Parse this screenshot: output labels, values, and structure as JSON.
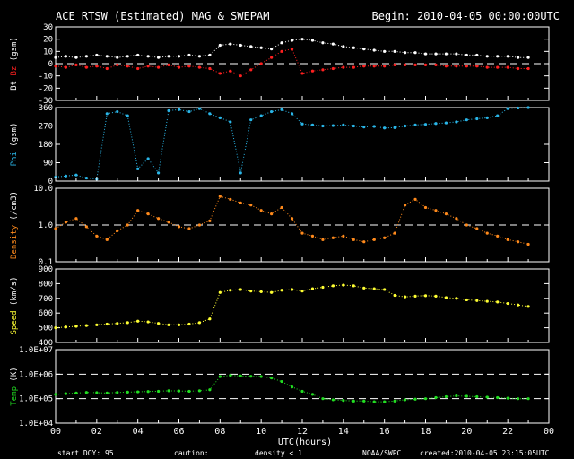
{
  "header": {
    "title": "ACE RTSW (Estimated) MAG & SWEPAM",
    "begin": "Begin: 2010-04-05 00:00:00UTC"
  },
  "footer": {
    "start_doy": "start DOY: 95",
    "caution": "caution:",
    "density_note": "density < 1",
    "source": "NOAA/SWPC",
    "created": "created:2010-04-05 23:15:05UTC"
  },
  "colors": {
    "bt": "#ffffff",
    "bz": "#ff2020",
    "phi": "#2ab6e8",
    "density": "#ff8a1c",
    "speed": "#ffff33",
    "temp": "#22dd22",
    "caution": "#ff8a1c"
  },
  "chart_data": [
    {
      "type": "scatter",
      "panel": "mag",
      "ylabel": [
        "Bt",
        "Bz",
        "(gsm)"
      ],
      "ylim": [
        -30,
        30
      ],
      "yticks": [
        "30",
        "20",
        "10",
        "0",
        "-10",
        "-20",
        "-30"
      ],
      "reference_line": 0,
      "series": [
        {
          "name": "Bt",
          "x": [
            0,
            0.5,
            1,
            1.5,
            2,
            2.5,
            3,
            3.5,
            4,
            4.5,
            5,
            5.5,
            6,
            6.5,
            7,
            7.5,
            8,
            8.5,
            9,
            9.5,
            10,
            10.5,
            11,
            11.5,
            12,
            12.5,
            13,
            13.5,
            14,
            14.5,
            15,
            15.5,
            16,
            16.5,
            17,
            17.5,
            18,
            18.5,
            19,
            19.5,
            20,
            20.5,
            21,
            21.5,
            22,
            22.5,
            23
          ],
          "y": [
            5,
            6,
            5,
            6,
            7,
            6,
            5,
            6,
            7,
            6,
            5,
            6,
            6,
            7,
            6,
            7,
            15,
            16,
            15,
            14,
            13,
            12,
            17,
            19,
            20,
            19,
            17,
            16,
            14,
            13,
            12,
            11,
            10,
            10,
            9,
            9,
            8,
            8,
            8,
            8,
            7,
            7,
            6,
            6,
            6,
            5,
            5
          ]
        },
        {
          "name": "Bz",
          "x": [
            0,
            0.5,
            1,
            1.5,
            2,
            2.5,
            3,
            3.5,
            4,
            4.5,
            5,
            5.5,
            6,
            6.5,
            7,
            7.5,
            8,
            8.5,
            9,
            9.5,
            10,
            10.5,
            11,
            11.5,
            12,
            12.5,
            13,
            13.5,
            14,
            14.5,
            15,
            15.5,
            16,
            16.5,
            17,
            17.5,
            18,
            18.5,
            19,
            19.5,
            20,
            20.5,
            21,
            21.5,
            22,
            22.5,
            23
          ],
          "y": [
            -2,
            -3,
            -1,
            -3,
            -2,
            -4,
            -1,
            -2,
            -4,
            -2,
            -3,
            -1,
            -3,
            -2,
            -3,
            -4,
            -8,
            -6,
            -10,
            -5,
            0,
            5,
            10,
            12,
            -8,
            -6,
            -5,
            -4,
            -3,
            -3,
            -2,
            -2,
            -2,
            -1,
            -1,
            -1,
            -1,
            -1,
            -2,
            -2,
            -2,
            -2,
            -3,
            -3,
            -3,
            -4,
            -4
          ]
        }
      ]
    },
    {
      "type": "scatter",
      "panel": "phi",
      "ylabel": [
        "Phi",
        "(gsm)"
      ],
      "ylim": [
        0,
        360
      ],
      "yticks": [
        "360",
        "270",
        "180",
        "90",
        "0"
      ],
      "series": [
        {
          "name": "Phi",
          "x": [
            0,
            0.5,
            1,
            1.5,
            2,
            2.5,
            3,
            3.5,
            4,
            4.5,
            5,
            5.5,
            6,
            6.5,
            7,
            7.5,
            8,
            8.5,
            9,
            9.5,
            10,
            10.5,
            11,
            11.5,
            12,
            12.5,
            13,
            13.5,
            14,
            14.5,
            15,
            15.5,
            16,
            16.5,
            17,
            17.5,
            18,
            18.5,
            19,
            19.5,
            20,
            20.5,
            21,
            21.5,
            22,
            22.5,
            23
          ],
          "y": [
            20,
            25,
            30,
            15,
            10,
            330,
            340,
            320,
            60,
            110,
            40,
            345,
            350,
            340,
            355,
            330,
            310,
            290,
            40,
            300,
            320,
            340,
            350,
            330,
            280,
            275,
            270,
            272,
            275,
            270,
            265,
            268,
            260,
            262,
            270,
            275,
            278,
            282,
            285,
            290,
            300,
            305,
            310,
            320,
            355,
            358,
            360
          ]
        }
      ]
    },
    {
      "type": "scatter",
      "panel": "density",
      "ylabel": [
        "Density",
        "(/cm3)"
      ],
      "yscale": "log",
      "ylim": [
        0.1,
        10
      ],
      "yticks": [
        "10.0",
        "1.0",
        "0.1"
      ],
      "reference_line": 1,
      "series": [
        {
          "name": "Density",
          "x": [
            0,
            0.5,
            1,
            1.5,
            2,
            2.5,
            3,
            3.5,
            4,
            4.5,
            5,
            5.5,
            6,
            6.5,
            7,
            7.5,
            8,
            8.5,
            9,
            9.5,
            10,
            10.5,
            11,
            11.5,
            12,
            12.5,
            13,
            13.5,
            14,
            14.5,
            15,
            15.5,
            16,
            16.5,
            17,
            17.5,
            18,
            18.5,
            19,
            19.5,
            20,
            20.5,
            21,
            21.5,
            22,
            22.5,
            23
          ],
          "y": [
            0.8,
            1.2,
            1.5,
            0.9,
            0.5,
            0.4,
            0.7,
            1.0,
            2.5,
            2.0,
            1.5,
            1.2,
            0.9,
            0.8,
            1.0,
            1.3,
            6.0,
            5.0,
            4.0,
            3.5,
            2.5,
            2.0,
            3.0,
            1.5,
            0.6,
            0.5,
            0.4,
            0.45,
            0.5,
            0.4,
            0.35,
            0.4,
            0.45,
            0.6,
            3.5,
            5.0,
            3.0,
            2.5,
            2.0,
            1.5,
            1.0,
            0.8,
            0.6,
            0.5,
            0.4,
            0.35,
            0.3
          ]
        }
      ]
    },
    {
      "type": "scatter",
      "panel": "speed",
      "ylabel": [
        "Speed",
        "(km/s)"
      ],
      "ylim": [
        400,
        900
      ],
      "yticks": [
        "900",
        "800",
        "700",
        "600",
        "500",
        "400"
      ],
      "series": [
        {
          "name": "Speed",
          "x": [
            0,
            0.5,
            1,
            1.5,
            2,
            2.5,
            3,
            3.5,
            4,
            4.5,
            5,
            5.5,
            6,
            6.5,
            7,
            7.5,
            8,
            8.5,
            9,
            9.5,
            10,
            10.5,
            11,
            11.5,
            12,
            12.5,
            13,
            13.5,
            14,
            14.5,
            15,
            15.5,
            16,
            16.5,
            17,
            17.5,
            18,
            18.5,
            19,
            19.5,
            20,
            20.5,
            21,
            21.5,
            22,
            22.5,
            23
          ],
          "y": [
            500,
            505,
            510,
            515,
            520,
            525,
            530,
            535,
            545,
            540,
            530,
            520,
            520,
            525,
            535,
            560,
            740,
            755,
            760,
            750,
            745,
            740,
            755,
            760,
            750,
            765,
            775,
            785,
            790,
            785,
            770,
            765,
            760,
            720,
            710,
            715,
            718,
            715,
            705,
            700,
            690,
            685,
            680,
            675,
            665,
            655,
            645
          ]
        }
      ]
    },
    {
      "type": "scatter",
      "panel": "temp",
      "ylabel": [
        "Temp",
        "(K)"
      ],
      "yscale": "log",
      "ylim": [
        10000,
        10000000
      ],
      "yticks": [
        "1.0E+07",
        "1.0E+06",
        "1.0E+05",
        "1.0E+04"
      ],
      "reference_lines": [
        1000000,
        100000
      ],
      "series": [
        {
          "name": "Temp",
          "x": [
            0,
            0.5,
            1,
            1.5,
            2,
            2.5,
            3,
            3.5,
            4,
            4.5,
            5,
            5.5,
            6,
            6.5,
            7,
            7.5,
            8,
            8.5,
            9,
            9.5,
            10,
            10.5,
            11,
            11.5,
            12,
            12.5,
            13,
            13.5,
            14,
            14.5,
            15,
            15.5,
            16,
            16.5,
            17,
            17.5,
            18,
            18.5,
            19,
            19.5,
            20,
            20.5,
            21,
            21.5,
            22,
            22.5,
            23
          ],
          "y": [
            150000,
            160000,
            170000,
            180000,
            175000,
            170000,
            180000,
            185000,
            190000,
            195000,
            200000,
            210000,
            205000,
            200000,
            210000,
            230000,
            800000,
            900000,
            850000,
            820000,
            800000,
            700000,
            500000,
            300000,
            200000,
            150000,
            100000,
            90000,
            85000,
            80000,
            80000,
            75000,
            75000,
            80000,
            90000,
            95000,
            100000,
            110000,
            120000,
            130000,
            125000,
            120000,
            115000,
            110000,
            105000,
            100000,
            100000
          ]
        }
      ]
    }
  ],
  "xaxis": {
    "label": "UTC(hours)",
    "ticks": [
      "00",
      "02",
      "04",
      "06",
      "08",
      "10",
      "12",
      "14",
      "16",
      "18",
      "20",
      "22",
      "00"
    ],
    "range": [
      0,
      24
    ]
  }
}
